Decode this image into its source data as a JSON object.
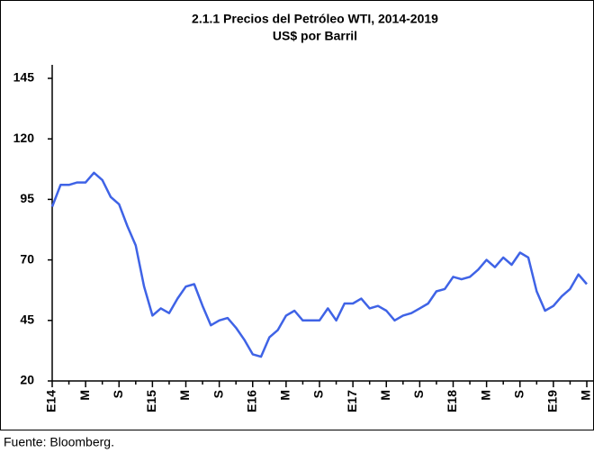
{
  "chart_data": {
    "type": "line",
    "title": "2.1.1 Precios del Petróleo WTI, 2014-2019",
    "subtitle": "US$ por Barril",
    "source": "Fuente: Bloomberg.",
    "categories": [
      "E14",
      null,
      null,
      null,
      "M",
      null,
      null,
      null,
      "S",
      null,
      null,
      null,
      "E15",
      null,
      null,
      null,
      "M",
      null,
      null,
      null,
      "S",
      null,
      null,
      null,
      "E16",
      null,
      null,
      null,
      "M",
      null,
      null,
      null,
      "S",
      null,
      null,
      null,
      "E17",
      null,
      null,
      null,
      "M",
      null,
      null,
      null,
      "S",
      null,
      null,
      null,
      "E18",
      null,
      null,
      null,
      "M",
      null,
      null,
      null,
      "S",
      null,
      null,
      null,
      "E19",
      null,
      null,
      null,
      "M"
    ],
    "series": [
      {
        "name": "WTI",
        "color": "#3f63e6",
        "values": [
          92,
          101,
          101,
          102,
          102,
          106,
          103,
          96,
          93,
          84,
          76,
          59,
          47,
          50,
          48,
          54,
          59,
          60,
          51,
          43,
          45,
          46,
          42,
          37,
          31,
          30,
          38,
          41,
          47,
          49,
          45,
          45,
          45,
          50,
          45,
          52,
          52,
          54,
          50,
          51,
          49,
          45,
          47,
          48,
          50,
          52,
          57,
          58,
          63,
          62,
          63,
          66,
          70,
          67,
          71,
          68,
          73,
          71,
          57,
          49,
          51,
          55,
          58,
          64,
          60
        ]
      }
    ],
    "ylim": [
      20,
      145
    ],
    "yticks": [
      20,
      45,
      70,
      95,
      120,
      145
    ]
  }
}
